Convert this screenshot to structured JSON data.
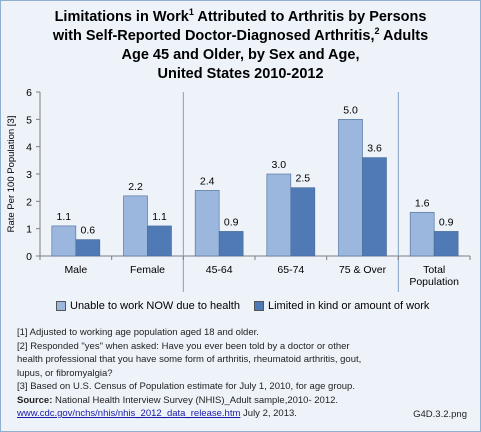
{
  "title": {
    "line1_a": "Limitations in Work",
    "line1_sup": "1",
    "line1_b": " Attributed to Arthritis by Persons",
    "line2_a": "with Self-Reported Doctor-Diagnosed Arthritis,",
    "line2_sup": "2",
    "line2_b": " Adults",
    "line3": "Age 45 and Older, by Sex and Age,",
    "line4": "United States 2010-2012"
  },
  "chart_data": {
    "type": "bar",
    "categories": [
      "Male",
      "Female",
      "45-64",
      "65-74",
      "75 & Over",
      "Total Population"
    ],
    "category_lines": [
      [
        "Male"
      ],
      [
        "Female"
      ],
      [
        "45-64"
      ],
      [
        "65-74"
      ],
      [
        "75 & Over"
      ],
      [
        "Total",
        "Population"
      ]
    ],
    "series": [
      {
        "name": "Unable to work NOW due to health",
        "values": [
          1.1,
          2.2,
          2.4,
          3.0,
          5.0,
          1.6
        ],
        "labels": [
          "1.1",
          "2.2",
          "2.4",
          "3.0",
          "5.0",
          "1.6"
        ],
        "color": "#9bb7de"
      },
      {
        "name": "Limited in kind or amount of work",
        "values": [
          0.6,
          1.1,
          0.9,
          2.5,
          3.6,
          0.9
        ],
        "labels": [
          "0.6",
          "1.1",
          "0.9",
          "2.5",
          "3.6",
          "0.9"
        ],
        "color": "#4f7ab5"
      }
    ],
    "ylabel": "Rate Per 100 Population [3]",
    "ylim": [
      0,
      6
    ],
    "yticks": [
      0,
      1,
      2,
      3,
      4,
      5,
      6
    ],
    "group_separators_after": [
      1,
      4
    ],
    "grid": false,
    "legend": "bottom"
  },
  "footnotes": {
    "n1": "[1] Adjusted to working age population aged 18 and older.",
    "n2a": "[2]    Responded \"yes\" when asked: Have you ever been told by a doctor or other",
    "n2b": "health professional that you have some form of arthritis, rheumatoid arthritis, gout,",
    "n2c": "lupus, or fibromyalgia?",
    "n3": "[3] Based on U.S. Census of Population estimate for July 1, 2010, for age group.",
    "source_label": "Source:",
    "source_text": " National Health Interview Survey (NHIS)_Adult sample,2010- 2012.",
    "link": "www.cdc.gov/nchs/nhis/nhis_2012_data_release.htm",
    "link_date": " July 2, 2013."
  },
  "figure_code": "G4D.3.2.png"
}
